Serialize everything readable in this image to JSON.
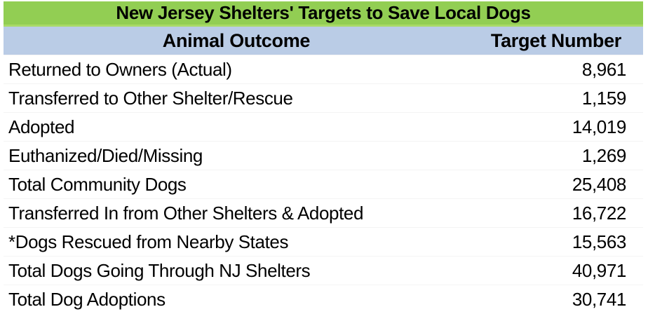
{
  "title": "New Jersey Shelters' Targets to Save Local Dogs",
  "colors": {
    "title_bg": "#92CE53",
    "title_divider": "#A9DA67",
    "header_bg": "#BACCE6",
    "text": "#000000",
    "background": "#FFFFFF"
  },
  "chart_data": {
    "type": "table",
    "title": "New Jersey Shelters' Targets to Save Local Dogs",
    "columns": [
      "Animal Outcome",
      "Target Number"
    ],
    "rows": [
      [
        "Returned to Owners (Actual)",
        "8,961"
      ],
      [
        "Transferred to Other Shelter/Rescue",
        "1,159"
      ],
      [
        "Adopted",
        "14,019"
      ],
      [
        "Euthanized/Died/Missing",
        "1,269"
      ],
      [
        "Total Community Dogs",
        "25,408"
      ],
      [
        "Transferred In from Other Shelters & Adopted",
        "16,722"
      ],
      [
        "*Dogs Rescued from Nearby States",
        "15,563"
      ],
      [
        "Total Dogs Going Through NJ Shelters",
        "40,971"
      ],
      [
        "Total Dog Adoptions",
        "30,741"
      ]
    ],
    "values": [
      8961,
      1159,
      14019,
      1269,
      25408,
      16722,
      15563,
      40971,
      30741
    ],
    "layout": {
      "title_alignment": "center",
      "header_alignment": "center",
      "label_alignment": "left",
      "value_alignment": "right",
      "gridlines": false
    }
  }
}
